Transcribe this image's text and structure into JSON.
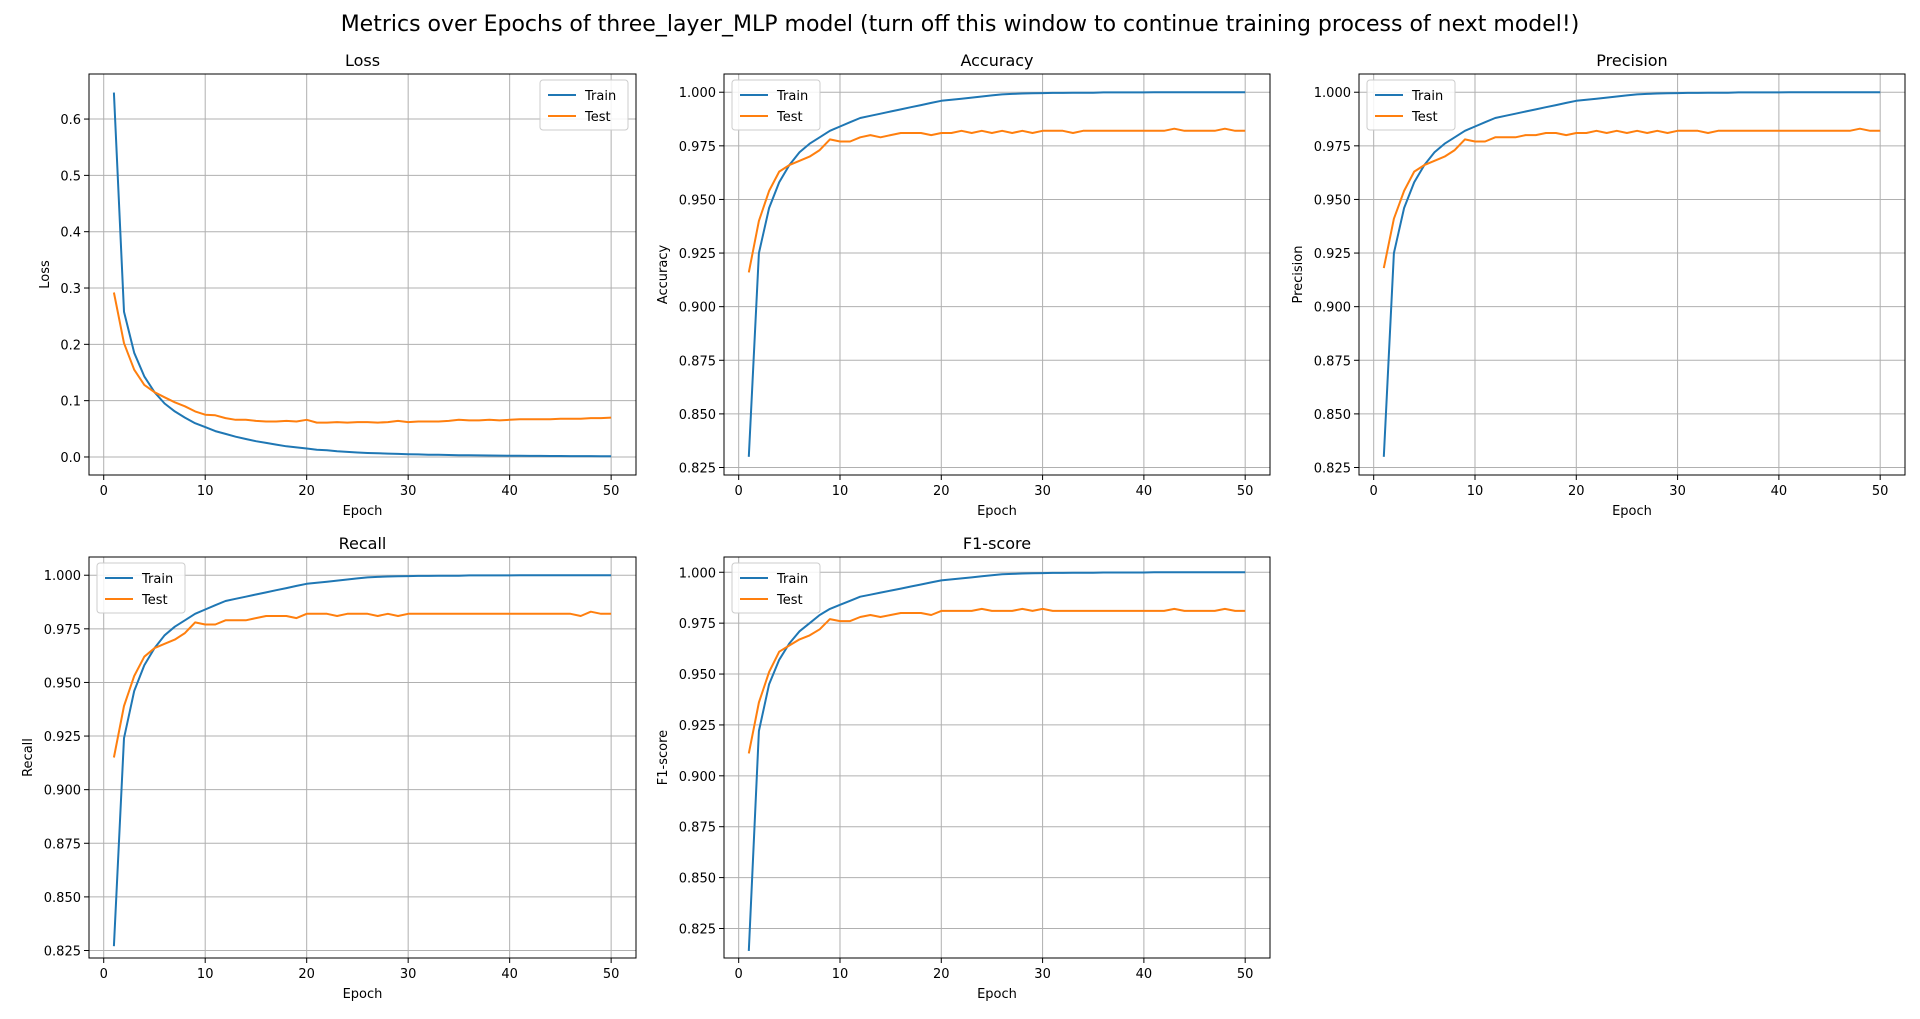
{
  "figure": {
    "title": "Metrics over Epochs of three_layer_MLP model (turn off this window to continue training process of next model!)"
  },
  "colors": {
    "train": "#1f77b4",
    "test": "#ff7f0e",
    "grid": "#b0b0b0"
  },
  "chart_data": [
    {
      "type": "line",
      "title": "Loss",
      "xlabel": "Epoch",
      "ylabel": "Loss",
      "xlim": [
        -1.45,
        52.45
      ],
      "ylim": [
        -0.032,
        0.68
      ],
      "xticks": [
        0,
        10,
        20,
        30,
        40,
        50
      ],
      "yticks": [
        0.0,
        0.1,
        0.2,
        0.3,
        0.4,
        0.5,
        0.6
      ],
      "ytick_labels": [
        "0.0",
        "0.1",
        "0.2",
        "0.3",
        "0.4",
        "0.5",
        "0.6"
      ],
      "grid": true,
      "legend": "top-right",
      "x": [
        1,
        2,
        3,
        4,
        5,
        6,
        7,
        8,
        9,
        10,
        11,
        12,
        13,
        14,
        15,
        16,
        17,
        18,
        19,
        20,
        21,
        22,
        23,
        24,
        25,
        26,
        27,
        28,
        29,
        30,
        31,
        32,
        33,
        34,
        35,
        36,
        37,
        38,
        39,
        40,
        41,
        42,
        43,
        44,
        45,
        46,
        47,
        48,
        49,
        50
      ],
      "series": [
        {
          "name": "Train",
          "values": [
            0.647,
            0.258,
            0.185,
            0.143,
            0.115,
            0.095,
            0.081,
            0.07,
            0.06,
            0.053,
            0.046,
            0.041,
            0.036,
            0.032,
            0.028,
            0.025,
            0.022,
            0.019,
            0.017,
            0.015,
            0.013,
            0.012,
            0.01,
            0.009,
            0.008,
            0.007,
            0.0065,
            0.006,
            0.0055,
            0.005,
            0.0045,
            0.004,
            0.0038,
            0.0035,
            0.0032,
            0.003,
            0.0028,
            0.0026,
            0.0024,
            0.0022,
            0.0021,
            0.002,
            0.0019,
            0.0018,
            0.0017,
            0.0016,
            0.0015,
            0.0015,
            0.0014,
            0.0013
          ]
        },
        {
          "name": "Test",
          "values": [
            0.292,
            0.202,
            0.155,
            0.128,
            0.115,
            0.106,
            0.097,
            0.09,
            0.081,
            0.075,
            0.074,
            0.069,
            0.066,
            0.066,
            0.064,
            0.063,
            0.063,
            0.064,
            0.063,
            0.066,
            0.061,
            0.061,
            0.062,
            0.061,
            0.062,
            0.062,
            0.061,
            0.062,
            0.064,
            0.062,
            0.063,
            0.063,
            0.063,
            0.064,
            0.066,
            0.065,
            0.065,
            0.066,
            0.065,
            0.066,
            0.067,
            0.067,
            0.067,
            0.067,
            0.068,
            0.068,
            0.068,
            0.069,
            0.069,
            0.07
          ]
        }
      ]
    },
    {
      "type": "line",
      "title": "Accuracy",
      "xlabel": "Epoch",
      "ylabel": "Accuracy",
      "xlim": [
        -1.45,
        52.45
      ],
      "ylim": [
        0.8215,
        1.0085
      ],
      "xticks": [
        0,
        10,
        20,
        30,
        40,
        50
      ],
      "yticks": [
        0.825,
        0.85,
        0.875,
        0.9,
        0.925,
        0.95,
        0.975,
        1.0
      ],
      "ytick_labels": [
        "0.825",
        "0.850",
        "0.875",
        "0.900",
        "0.925",
        "0.950",
        "0.975",
        "1.000"
      ],
      "grid": true,
      "legend": "top-left",
      "x": [
        1,
        2,
        3,
        4,
        5,
        6,
        7,
        8,
        9,
        10,
        11,
        12,
        13,
        14,
        15,
        16,
        17,
        18,
        19,
        20,
        21,
        22,
        23,
        24,
        25,
        26,
        27,
        28,
        29,
        30,
        31,
        32,
        33,
        34,
        35,
        36,
        37,
        38,
        39,
        40,
        41,
        42,
        43,
        44,
        45,
        46,
        47,
        48,
        49,
        50
      ],
      "series": [
        {
          "name": "Train",
          "values": [
            0.83,
            0.925,
            0.946,
            0.958,
            0.966,
            0.972,
            0.976,
            0.979,
            0.982,
            0.984,
            0.986,
            0.988,
            0.989,
            0.99,
            0.991,
            0.992,
            0.993,
            0.994,
            0.995,
            0.996,
            0.9965,
            0.997,
            0.9975,
            0.998,
            0.9985,
            0.999,
            0.9992,
            0.9994,
            0.9995,
            0.9996,
            0.9997,
            0.9997,
            0.9998,
            0.9998,
            0.9998,
            0.9999,
            0.9999,
            0.9999,
            0.9999,
            0.9999,
            1.0,
            1.0,
            1.0,
            1.0,
            1.0,
            1.0,
            1.0,
            1.0,
            1.0,
            1.0
          ]
        },
        {
          "name": "Test",
          "values": [
            0.916,
            0.94,
            0.954,
            0.963,
            0.966,
            0.968,
            0.97,
            0.973,
            0.978,
            0.977,
            0.977,
            0.979,
            0.98,
            0.979,
            0.98,
            0.981,
            0.981,
            0.981,
            0.98,
            0.981,
            0.981,
            0.982,
            0.981,
            0.982,
            0.981,
            0.982,
            0.981,
            0.982,
            0.981,
            0.982,
            0.982,
            0.982,
            0.981,
            0.982,
            0.982,
            0.982,
            0.982,
            0.982,
            0.982,
            0.982,
            0.982,
            0.982,
            0.983,
            0.982,
            0.982,
            0.982,
            0.982,
            0.983,
            0.982,
            0.982
          ]
        }
      ]
    },
    {
      "type": "line",
      "title": "Precision",
      "xlabel": "Epoch",
      "ylabel": "Precision",
      "xlim": [
        -1.45,
        52.45
      ],
      "ylim": [
        0.8215,
        1.0085
      ],
      "xticks": [
        0,
        10,
        20,
        30,
        40,
        50
      ],
      "yticks": [
        0.825,
        0.85,
        0.875,
        0.9,
        0.925,
        0.95,
        0.975,
        1.0
      ],
      "ytick_labels": [
        "0.825",
        "0.850",
        "0.875",
        "0.900",
        "0.925",
        "0.950",
        "0.975",
        "1.000"
      ],
      "grid": true,
      "legend": "top-left",
      "x": [
        1,
        2,
        3,
        4,
        5,
        6,
        7,
        8,
        9,
        10,
        11,
        12,
        13,
        14,
        15,
        16,
        17,
        18,
        19,
        20,
        21,
        22,
        23,
        24,
        25,
        26,
        27,
        28,
        29,
        30,
        31,
        32,
        33,
        34,
        35,
        36,
        37,
        38,
        39,
        40,
        41,
        42,
        43,
        44,
        45,
        46,
        47,
        48,
        49,
        50
      ],
      "series": [
        {
          "name": "Train",
          "values": [
            0.83,
            0.925,
            0.946,
            0.958,
            0.966,
            0.972,
            0.976,
            0.979,
            0.982,
            0.984,
            0.986,
            0.988,
            0.989,
            0.99,
            0.991,
            0.992,
            0.993,
            0.994,
            0.995,
            0.996,
            0.9965,
            0.997,
            0.9975,
            0.998,
            0.9985,
            0.999,
            0.9992,
            0.9994,
            0.9995,
            0.9996,
            0.9997,
            0.9997,
            0.9998,
            0.9998,
            0.9998,
            0.9999,
            0.9999,
            0.9999,
            0.9999,
            0.9999,
            1.0,
            1.0,
            1.0,
            1.0,
            1.0,
            1.0,
            1.0,
            1.0,
            1.0,
            1.0
          ]
        },
        {
          "name": "Test",
          "values": [
            0.918,
            0.941,
            0.954,
            0.963,
            0.966,
            0.968,
            0.97,
            0.973,
            0.978,
            0.977,
            0.977,
            0.979,
            0.979,
            0.979,
            0.98,
            0.98,
            0.981,
            0.981,
            0.98,
            0.981,
            0.981,
            0.982,
            0.981,
            0.982,
            0.981,
            0.982,
            0.981,
            0.982,
            0.981,
            0.982,
            0.982,
            0.982,
            0.981,
            0.982,
            0.982,
            0.982,
            0.982,
            0.982,
            0.982,
            0.982,
            0.982,
            0.982,
            0.982,
            0.982,
            0.982,
            0.982,
            0.982,
            0.983,
            0.982,
            0.982
          ]
        }
      ]
    },
    {
      "type": "line",
      "title": "Recall",
      "xlabel": "Epoch",
      "ylabel": "Recall",
      "xlim": [
        -1.45,
        52.45
      ],
      "ylim": [
        0.8215,
        1.0085
      ],
      "xticks": [
        0,
        10,
        20,
        30,
        40,
        50
      ],
      "yticks": [
        0.825,
        0.85,
        0.875,
        0.9,
        0.925,
        0.95,
        0.975,
        1.0
      ],
      "ytick_labels": [
        "0.825",
        "0.850",
        "0.875",
        "0.900",
        "0.925",
        "0.950",
        "0.975",
        "1.000"
      ],
      "grid": true,
      "legend": "top-left",
      "x": [
        1,
        2,
        3,
        4,
        5,
        6,
        7,
        8,
        9,
        10,
        11,
        12,
        13,
        14,
        15,
        16,
        17,
        18,
        19,
        20,
        21,
        22,
        23,
        24,
        25,
        26,
        27,
        28,
        29,
        30,
        31,
        32,
        33,
        34,
        35,
        36,
        37,
        38,
        39,
        40,
        41,
        42,
        43,
        44,
        45,
        46,
        47,
        48,
        49,
        50
      ],
      "series": [
        {
          "name": "Train",
          "values": [
            0.827,
            0.924,
            0.946,
            0.958,
            0.966,
            0.972,
            0.976,
            0.979,
            0.982,
            0.984,
            0.986,
            0.988,
            0.989,
            0.99,
            0.991,
            0.992,
            0.993,
            0.994,
            0.995,
            0.996,
            0.9965,
            0.997,
            0.9975,
            0.998,
            0.9985,
            0.999,
            0.9992,
            0.9994,
            0.9995,
            0.9996,
            0.9997,
            0.9997,
            0.9998,
            0.9998,
            0.9998,
            0.9999,
            0.9999,
            0.9999,
            0.9999,
            0.9999,
            1.0,
            1.0,
            1.0,
            1.0,
            1.0,
            1.0,
            1.0,
            1.0,
            1.0,
            1.0
          ]
        },
        {
          "name": "Test",
          "values": [
            0.915,
            0.939,
            0.953,
            0.962,
            0.966,
            0.968,
            0.97,
            0.973,
            0.978,
            0.977,
            0.977,
            0.979,
            0.979,
            0.979,
            0.98,
            0.981,
            0.981,
            0.981,
            0.98,
            0.982,
            0.982,
            0.982,
            0.981,
            0.982,
            0.982,
            0.982,
            0.981,
            0.982,
            0.981,
            0.982,
            0.982,
            0.982,
            0.982,
            0.982,
            0.982,
            0.982,
            0.982,
            0.982,
            0.982,
            0.982,
            0.982,
            0.982,
            0.982,
            0.982,
            0.982,
            0.982,
            0.981,
            0.983,
            0.982,
            0.982
          ]
        }
      ]
    },
    {
      "type": "line",
      "title": "F1-score",
      "xlabel": "Epoch",
      "ylabel": "F1-score",
      "xlim": [
        -1.45,
        52.45
      ],
      "ylim": [
        0.8105,
        1.0075
      ],
      "xticks": [
        0,
        10,
        20,
        30,
        40,
        50
      ],
      "yticks": [
        0.825,
        0.85,
        0.875,
        0.9,
        0.925,
        0.95,
        0.975,
        1.0
      ],
      "ytick_labels": [
        "0.825",
        "0.850",
        "0.875",
        "0.900",
        "0.925",
        "0.950",
        "0.975",
        "1.000"
      ],
      "grid": true,
      "legend": "top-left",
      "x": [
        1,
        2,
        3,
        4,
        5,
        6,
        7,
        8,
        9,
        10,
        11,
        12,
        13,
        14,
        15,
        16,
        17,
        18,
        19,
        20,
        21,
        22,
        23,
        24,
        25,
        26,
        27,
        28,
        29,
        30,
        31,
        32,
        33,
        34,
        35,
        36,
        37,
        38,
        39,
        40,
        41,
        42,
        43,
        44,
        45,
        46,
        47,
        48,
        49,
        50
      ],
      "series": [
        {
          "name": "Train",
          "values": [
            0.814,
            0.922,
            0.945,
            0.957,
            0.965,
            0.971,
            0.975,
            0.979,
            0.982,
            0.984,
            0.986,
            0.988,
            0.989,
            0.99,
            0.991,
            0.992,
            0.993,
            0.994,
            0.995,
            0.996,
            0.9965,
            0.997,
            0.9975,
            0.998,
            0.9985,
            0.999,
            0.9992,
            0.9994,
            0.9995,
            0.9996,
            0.9997,
            0.9997,
            0.9998,
            0.9998,
            0.9998,
            0.9999,
            0.9999,
            0.9999,
            0.9999,
            0.9999,
            1.0,
            1.0,
            1.0,
            1.0,
            1.0,
            1.0,
            1.0,
            1.0,
            1.0,
            1.0
          ]
        },
        {
          "name": "Test",
          "values": [
            0.911,
            0.936,
            0.951,
            0.961,
            0.964,
            0.967,
            0.969,
            0.972,
            0.977,
            0.976,
            0.976,
            0.978,
            0.979,
            0.978,
            0.979,
            0.98,
            0.98,
            0.98,
            0.979,
            0.981,
            0.981,
            0.981,
            0.981,
            0.982,
            0.981,
            0.981,
            0.981,
            0.982,
            0.981,
            0.982,
            0.981,
            0.981,
            0.981,
            0.981,
            0.981,
            0.981,
            0.981,
            0.981,
            0.981,
            0.981,
            0.981,
            0.981,
            0.982,
            0.981,
            0.981,
            0.981,
            0.981,
            0.982,
            0.981,
            0.981
          ]
        }
      ]
    }
  ]
}
